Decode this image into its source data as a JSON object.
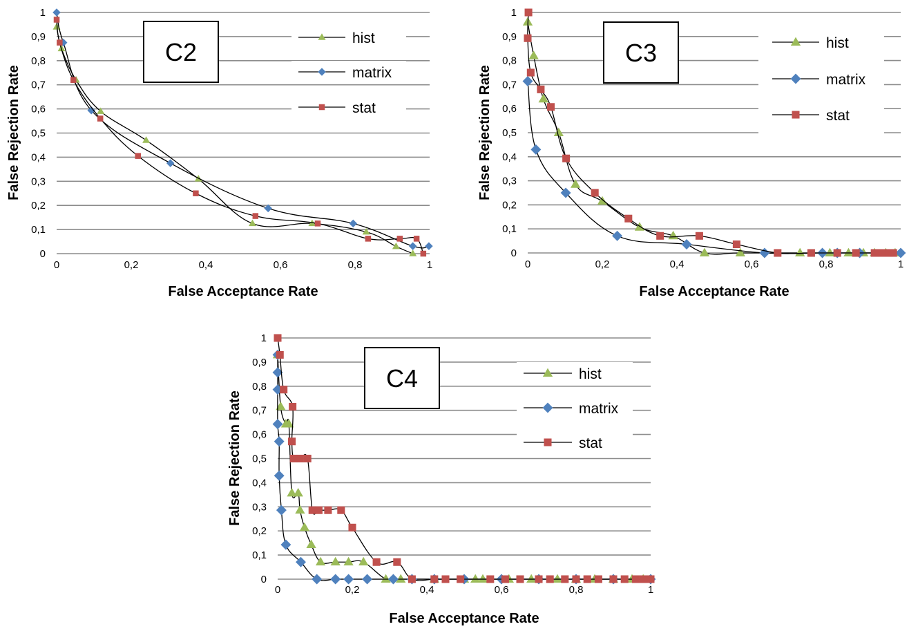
{
  "chart_data": [
    {
      "type": "line",
      "label": "C2",
      "xlabel": "False Acceptance Rate",
      "ylabel": "False  Rejection Rate",
      "xlim": [
        0,
        1
      ],
      "ylim": [
        0,
        1
      ],
      "x_ticks": [
        "0",
        "0,2",
        "0,4",
        "0,6",
        "0,8",
        "1"
      ],
      "y_ticks": [
        "0",
        "0,1",
        "0,2",
        "0,3",
        "0,4",
        "0,5",
        "0,6",
        "0,7",
        "0,8",
        "0,9",
        "1"
      ],
      "grid": "horizontal",
      "legend": "right",
      "series": [
        {
          "name": "hist",
          "color": "#9BBB59",
          "marker": "triangle",
          "marker_size": "small",
          "points": [
            [
              0,
              0.94
            ],
            [
              0.013,
              0.85
            ],
            [
              0.052,
              0.72
            ],
            [
              0.118,
              0.59
            ],
            [
              0.24,
              0.47
            ],
            [
              0.38,
              0.31
            ],
            [
              0.525,
              0.125
            ],
            [
              0.685,
              0.125
            ],
            [
              0.83,
              0.09
            ],
            [
              0.91,
              0.03
            ],
            [
              0.955,
              0.0
            ]
          ]
        },
        {
          "name": "matrix",
          "color": "#4F81BD",
          "marker": "diamond",
          "marker_size": "small",
          "points": [
            [
              0,
              1.0
            ],
            [
              0.018,
              0.875
            ],
            [
              0.093,
              0.594
            ],
            [
              0.305,
              0.375
            ],
            [
              0.567,
              0.188
            ],
            [
              0.795,
              0.125
            ],
            [
              0.955,
              0.031
            ],
            [
              0.998,
              0.031
            ]
          ]
        },
        {
          "name": "stat",
          "color": "#C0504D",
          "marker": "square",
          "marker_size": "small",
          "points": [
            [
              0,
              0.97
            ],
            [
              0.008,
              0.875
            ],
            [
              0.045,
              0.72
            ],
            [
              0.117,
              0.56
            ],
            [
              0.218,
              0.405
            ],
            [
              0.373,
              0.25
            ],
            [
              0.533,
              0.156
            ],
            [
              0.7,
              0.125
            ],
            [
              0.835,
              0.062
            ],
            [
              0.92,
              0.062
            ],
            [
              0.965,
              0.062
            ],
            [
              0.983,
              0.0
            ]
          ]
        }
      ]
    },
    {
      "type": "line",
      "label": "C3",
      "xlabel": "False Acceptance Rate",
      "ylabel": "False  Rejection Rate",
      "xlim": [
        0,
        1
      ],
      "ylim": [
        0,
        1
      ],
      "x_ticks": [
        "0",
        "0,2",
        "0,4",
        "0,6",
        "0,8",
        "1"
      ],
      "y_ticks": [
        "0",
        "0,1",
        "0,2",
        "0,3",
        "0,4",
        "0,5",
        "0,6",
        "0,7",
        "0,8",
        "0,9",
        "1"
      ],
      "grid": "horizontal",
      "legend": "right",
      "series": [
        {
          "name": "hist",
          "color": "#9BBB59",
          "marker": "triangle",
          "marker_size": "large",
          "points": [
            [
              0,
              0.96
            ],
            [
              0.016,
              0.82
            ],
            [
              0.042,
              0.64
            ],
            [
              0.083,
              0.5
            ],
            [
              0.128,
              0.285
            ],
            [
              0.2,
              0.215
            ],
            [
              0.3,
              0.107
            ],
            [
              0.39,
              0.071
            ],
            [
              0.474,
              0.0
            ],
            [
              0.57,
              0.0
            ],
            [
              0.73,
              0.0
            ],
            [
              0.81,
              0.0
            ],
            [
              0.86,
              0.0
            ],
            [
              0.9,
              0.0
            ],
            [
              0.93,
              0.0
            ],
            [
              0.96,
              0.0
            ],
            [
              0.985,
              0.0
            ]
          ]
        },
        {
          "name": "matrix",
          "color": "#4F81BD",
          "marker": "diamond",
          "marker_size": "large",
          "points": [
            [
              0,
              0.714
            ],
            [
              0.022,
              0.43
            ],
            [
              0.102,
              0.25
            ],
            [
              0.24,
              0.071
            ],
            [
              0.426,
              0.036
            ],
            [
              0.635,
              0.0
            ],
            [
              0.79,
              0.0
            ],
            [
              0.83,
              0.0
            ],
            [
              0.89,
              0.0
            ],
            [
              1.0,
              0.0
            ]
          ]
        },
        {
          "name": "stat",
          "color": "#C0504D",
          "marker": "square",
          "marker_size": "large",
          "points": [
            [
              0.002,
              1.0
            ],
            [
              0.0,
              0.893
            ],
            [
              0.008,
              0.75
            ],
            [
              0.035,
              0.68
            ],
            [
              0.062,
              0.607
            ],
            [
              0.103,
              0.393
            ],
            [
              0.18,
              0.25
            ],
            [
              0.27,
              0.143
            ],
            [
              0.355,
              0.071
            ],
            [
              0.46,
              0.071
            ],
            [
              0.56,
              0.036
            ],
            [
              0.67,
              0.0
            ],
            [
              0.76,
              0.0
            ],
            [
              0.83,
              0.0
            ],
            [
              0.88,
              0.0
            ],
            [
              0.93,
              0.0
            ],
            [
              0.95,
              0.0
            ],
            [
              0.97,
              0.0
            ],
            [
              0.98,
              0.0
            ]
          ]
        }
      ]
    },
    {
      "type": "line",
      "label": "C4",
      "xlabel": "False Acceptance Rate",
      "ylabel": "False  Rejection Rate",
      "xlim": [
        0,
        1
      ],
      "ylim": [
        0,
        1
      ],
      "x_ticks": [
        "0",
        "0,2",
        "0,4",
        "0,6",
        "0,8",
        "1"
      ],
      "y_ticks": [
        "0",
        "0,1",
        "0,2",
        "0,3",
        "0,4",
        "0,5",
        "0,6",
        "0,7",
        "0,8",
        "0,9",
        "1"
      ],
      "grid": "horizontal",
      "legend": "right",
      "series": [
        {
          "name": "hist",
          "color": "#9BBB59",
          "marker": "triangle",
          "marker_size": "large",
          "points": [
            [
              0.0,
              0.93
            ],
            [
              0.008,
              0.715
            ],
            [
              0.022,
              0.643
            ],
            [
              0.03,
              0.643
            ],
            [
              0.038,
              0.357
            ],
            [
              0.055,
              0.357
            ],
            [
              0.06,
              0.286
            ],
            [
              0.072,
              0.214
            ],
            [
              0.09,
              0.143
            ],
            [
              0.115,
              0.071
            ],
            [
              0.155,
              0.071
            ],
            [
              0.19,
              0.071
            ],
            [
              0.23,
              0.071
            ],
            [
              0.29,
              0.0
            ],
            [
              0.33,
              0.0
            ],
            [
              0.42,
              0.0
            ],
            [
              0.5,
              0.0
            ],
            [
              0.53,
              0.0
            ],
            [
              0.55,
              0.0
            ],
            [
              0.62,
              0.0
            ],
            [
              0.68,
              0.0
            ],
            [
              0.75,
              0.0
            ],
            [
              0.8,
              0.0
            ],
            [
              0.85,
              0.0
            ],
            [
              0.9,
              0.0
            ],
            [
              0.95,
              0.0
            ],
            [
              0.98,
              0.0
            ]
          ]
        },
        {
          "name": "matrix",
          "color": "#4F81BD",
          "marker": "diamond",
          "marker_size": "large",
          "points": [
            [
              0.0,
              0.93
            ],
            [
              0.0,
              0.857
            ],
            [
              0.0,
              0.786
            ],
            [
              0.0,
              0.643
            ],
            [
              0.004,
              0.571
            ],
            [
              0.004,
              0.429
            ],
            [
              0.01,
              0.286
            ],
            [
              0.022,
              0.143
            ],
            [
              0.062,
              0.071
            ],
            [
              0.105,
              0.0
            ],
            [
              0.155,
              0.0
            ],
            [
              0.19,
              0.0
            ],
            [
              0.24,
              0.0
            ],
            [
              0.31,
              0.0
            ],
            [
              0.36,
              0.0
            ],
            [
              0.42,
              0.0
            ],
            [
              0.5,
              0.0
            ],
            [
              0.6,
              0.0
            ],
            [
              0.7,
              0.0
            ],
            [
              0.8,
              0.0
            ],
            [
              0.9,
              0.0
            ],
            [
              1.0,
              0.0
            ]
          ]
        },
        {
          "name": "stat",
          "color": "#C0504D",
          "marker": "square",
          "marker_size": "large",
          "points": [
            [
              0.0,
              1.0
            ],
            [
              0.006,
              0.93
            ],
            [
              0.016,
              0.786
            ],
            [
              0.04,
              0.715
            ],
            [
              0.038,
              0.571
            ],
            [
              0.043,
              0.5
            ],
            [
              0.06,
              0.5
            ],
            [
              0.08,
              0.5
            ],
            [
              0.093,
              0.286
            ],
            [
              0.11,
              0.286
            ],
            [
              0.135,
              0.286
            ],
            [
              0.17,
              0.286
            ],
            [
              0.2,
              0.214
            ],
            [
              0.265,
              0.071
            ],
            [
              0.32,
              0.071
            ],
            [
              0.36,
              0.0
            ],
            [
              0.42,
              0.0
            ],
            [
              0.45,
              0.0
            ],
            [
              0.49,
              0.0
            ],
            [
              0.57,
              0.0
            ],
            [
              0.61,
              0.0
            ],
            [
              0.65,
              0.0
            ],
            [
              0.7,
              0.0
            ],
            [
              0.73,
              0.0
            ],
            [
              0.77,
              0.0
            ],
            [
              0.8,
              0.0
            ],
            [
              0.83,
              0.0
            ],
            [
              0.86,
              0.0
            ],
            [
              0.9,
              0.0
            ],
            [
              0.93,
              0.0
            ],
            [
              0.96,
              0.0
            ],
            [
              0.98,
              0.0
            ],
            [
              1.0,
              0.0
            ]
          ]
        }
      ]
    }
  ]
}
